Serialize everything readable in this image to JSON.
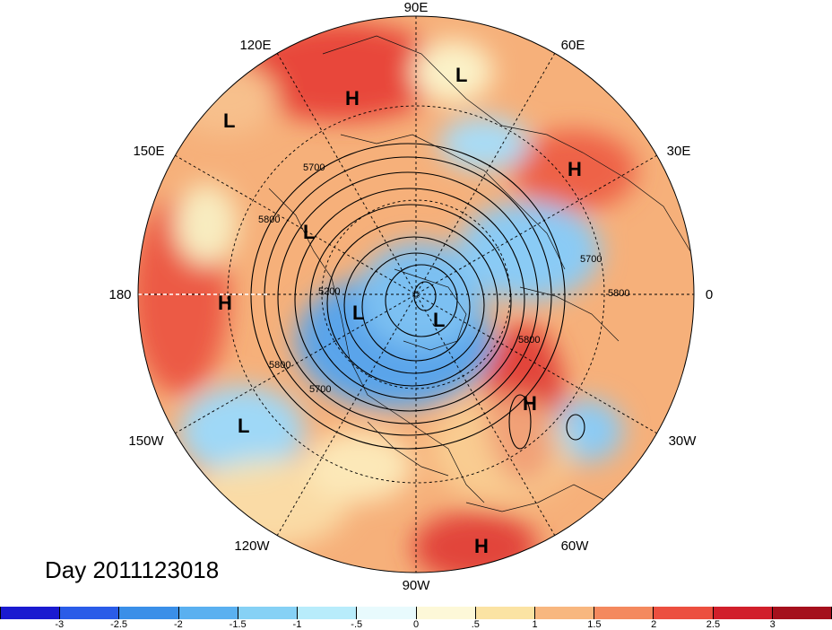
{
  "title": "Day 2011123018",
  "longitude_labels": {
    "n": "90E",
    "nne": "60E",
    "ene": "30E",
    "e": "0",
    "ese": "30W",
    "sse": "60W",
    "s": "90W",
    "ssw": "120W",
    "wsw": "150W",
    "w": "180",
    "wnw": "150E",
    "nnw": "120E"
  },
  "pressure_centers": [
    {
      "label": "L",
      "region": "central-siberia"
    },
    {
      "label": "H",
      "region": "east-siberia"
    },
    {
      "label": "L",
      "region": "north-pacific-west"
    },
    {
      "label": "H",
      "region": "europe"
    },
    {
      "label": "L",
      "region": "bering-sea"
    },
    {
      "label": "H",
      "region": "north-pacific"
    },
    {
      "label": "L",
      "region": "canada-arctic"
    },
    {
      "label": "L",
      "region": "arctic-ocean"
    },
    {
      "label": "L",
      "region": "east-pacific"
    },
    {
      "label": "H",
      "region": "mid-atlantic"
    },
    {
      "label": "H",
      "region": "caribbean"
    }
  ],
  "contour_labels": [
    "5700",
    "5800",
    "5200",
    "5700",
    "5800",
    "5700",
    "5800",
    "5800"
  ],
  "colorbar": {
    "colors": [
      "#1a1ad0",
      "#2a5ce8",
      "#3a8fe8",
      "#5ab0f0",
      "#86d1f5",
      "#b8ecfb",
      "#e8fafd",
      "#fdf8d8",
      "#fbe3a3",
      "#f8b77f",
      "#f4895e",
      "#ec4f3f",
      "#d11f2b",
      "#a5101c"
    ],
    "ticks": [
      "-3",
      "-2.5",
      "-2",
      "-1.5",
      "-1",
      "-.5",
      "0",
      ".5",
      "1",
      "1.5",
      "2",
      "2.5",
      "3"
    ]
  }
}
